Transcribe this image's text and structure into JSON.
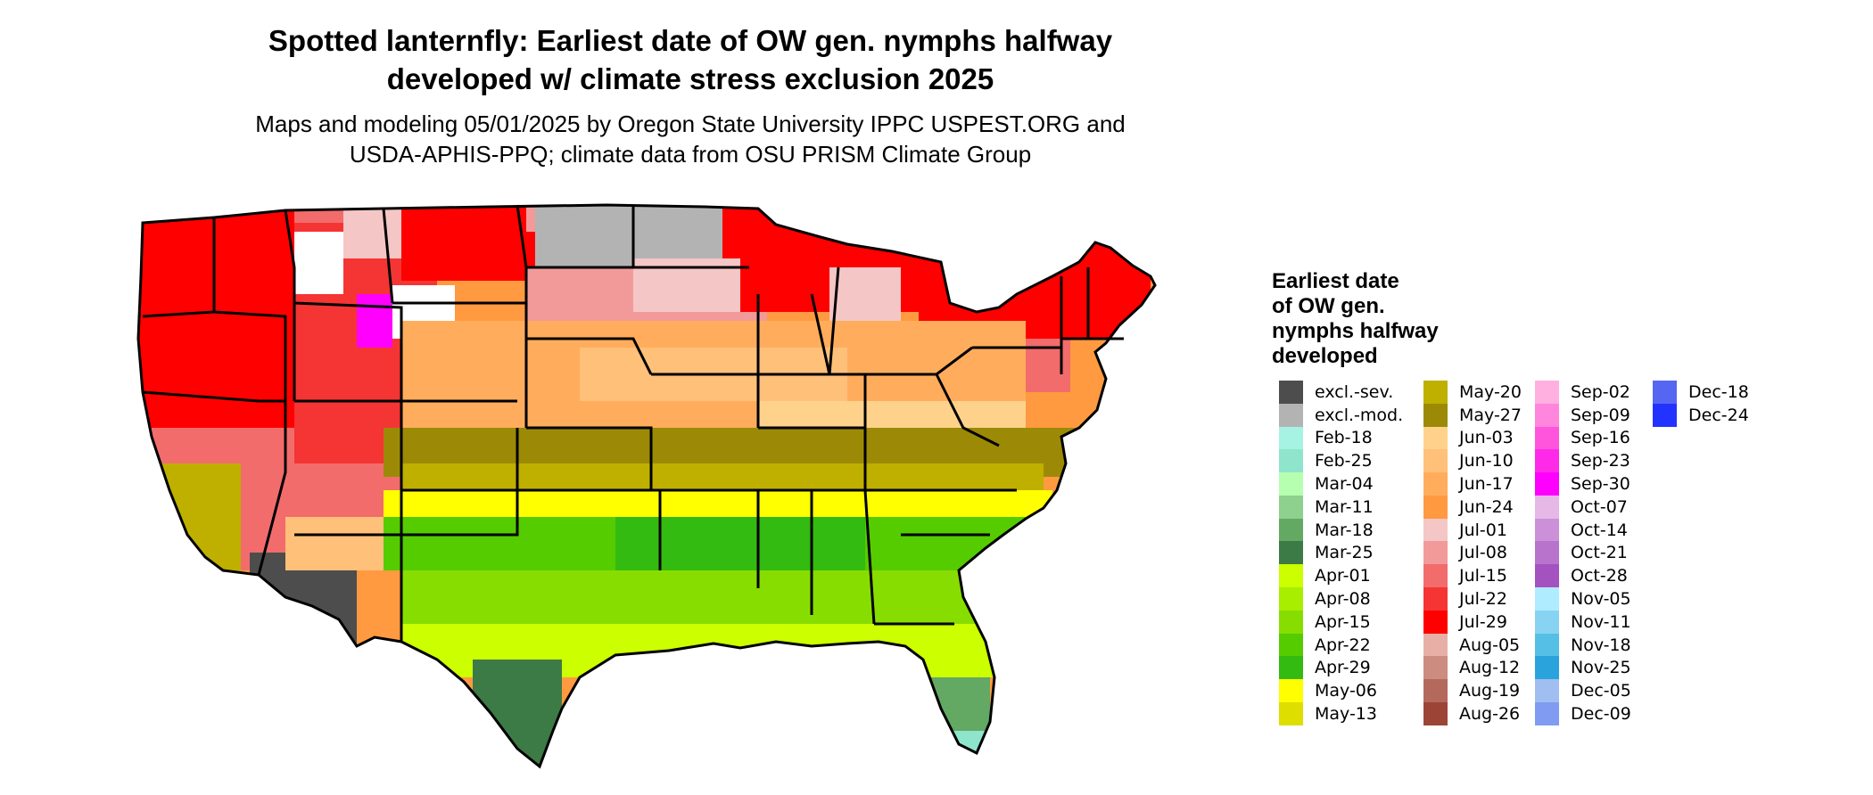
{
  "title_lines": [
    "Spotted lanternfly: Earliest date of OW gen. nymphs halfway",
    "developed w/ climate stress exclusion 2025"
  ],
  "subtitle_lines": [
    "Maps and modeling 05/01/2025 by Oregon State University IPPC USPEST.ORG and",
    "USDA-APHIS-PPQ; climate data from OSU PRISM Climate Group"
  ],
  "legend": {
    "title_lines": [
      "Earliest date",
      "of OW gen.",
      "nymphs halfway",
      "developed"
    ],
    "columns": [
      [
        {
          "label": "excl.-sev.",
          "color": "#4d4d4d"
        },
        {
          "label": "excl.-mod.",
          "color": "#b3b3b3"
        },
        {
          "label": "Feb-18",
          "color": "#a6f2e3"
        },
        {
          "label": "Feb-25",
          "color": "#8ee5cc"
        },
        {
          "label": "Mar-04",
          "color": "#b7ffb0"
        },
        {
          "label": "Mar-11",
          "color": "#8ed08e"
        },
        {
          "label": "Mar-18",
          "color": "#63a863"
        },
        {
          "label": "Mar-25",
          "color": "#3c7a46"
        },
        {
          "label": "Apr-01",
          "color": "#ccff00"
        },
        {
          "label": "Apr-08",
          "color": "#a8ee00"
        },
        {
          "label": "Apr-15",
          "color": "#88dd00"
        },
        {
          "label": "Apr-22",
          "color": "#55cc00"
        },
        {
          "label": "Apr-29",
          "color": "#33bb11"
        },
        {
          "label": "May-06",
          "color": "#ffff00"
        },
        {
          "label": "May-13",
          "color": "#dede00"
        }
      ],
      [
        {
          "label": "May-20",
          "color": "#bfb000"
        },
        {
          "label": "May-27",
          "color": "#9c8a06"
        },
        {
          "label": "Jun-03",
          "color": "#ffd28c"
        },
        {
          "label": "Jun-10",
          "color": "#ffc07a"
        },
        {
          "label": "Jun-17",
          "color": "#ffad5c"
        },
        {
          "label": "Jun-24",
          "color": "#ff9a40"
        },
        {
          "label": "Jul-01",
          "color": "#f5c6c6"
        },
        {
          "label": "Jul-08",
          "color": "#f29a9a"
        },
        {
          "label": "Jul-15",
          "color": "#f26c6c"
        },
        {
          "label": "Jul-22",
          "color": "#f53434"
        },
        {
          "label": "Jul-29",
          "color": "#ff0000"
        },
        {
          "label": "Aug-05",
          "color": "#e6b0a6"
        },
        {
          "label": "Aug-12",
          "color": "#cc8c80"
        },
        {
          "label": "Aug-19",
          "color": "#b36a5c"
        },
        {
          "label": "Aug-26",
          "color": "#9c4536"
        }
      ],
      [
        {
          "label": "Sep-02",
          "color": "#ffb0e0"
        },
        {
          "label": "Sep-09",
          "color": "#ff85dd"
        },
        {
          "label": "Sep-16",
          "color": "#ff55dd"
        },
        {
          "label": "Sep-23",
          "color": "#ff2ae8"
        },
        {
          "label": "Sep-30",
          "color": "#ff00ff"
        },
        {
          "label": "Oct-07",
          "color": "#e6b8e6"
        },
        {
          "label": "Oct-14",
          "color": "#cc90d9"
        },
        {
          "label": "Oct-21",
          "color": "#b873cc"
        },
        {
          "label": "Oct-28",
          "color": "#a352bf"
        },
        {
          "label": "Nov-05",
          "color": "#b0ecff"
        },
        {
          "label": "Nov-11",
          "color": "#88d3f2"
        },
        {
          "label": "Nov-18",
          "color": "#55bfe6"
        },
        {
          "label": "Nov-25",
          "color": "#2aa3dd"
        },
        {
          "label": "Dec-05",
          "color": "#a0bff0"
        },
        {
          "label": "Dec-09",
          "color": "#7f9cf2"
        }
      ],
      [
        {
          "label": "Dec-18",
          "color": "#5566f2"
        },
        {
          "label": "Dec-24",
          "color": "#2233ff"
        }
      ]
    ]
  }
}
